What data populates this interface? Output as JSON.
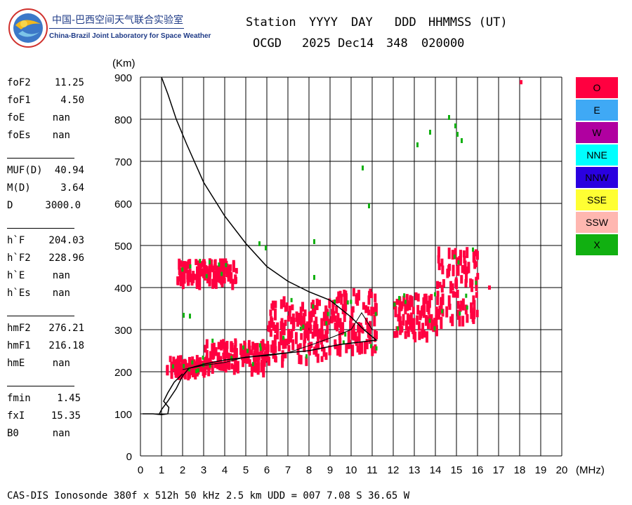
{
  "lab": {
    "name_cn": "中国-巴西空间天气联合实验室",
    "name_en": "China-Brazil Joint Laboratory for Space Weather"
  },
  "header": {
    "labels": [
      "Station",
      "YYYY",
      "DAY",
      "DDD",
      "HHMMSS (UT)"
    ],
    "values": [
      "OCGD",
      "2025 Dec14",
      "348",
      "020000"
    ]
  },
  "params": {
    "group1": [
      [
        "foF2",
        "11.25"
      ],
      [
        "foF1",
        "4.50"
      ],
      [
        "foE",
        "nan"
      ],
      [
        "foEs",
        "nan"
      ]
    ],
    "group2": [
      [
        "MUF(D)",
        "40.94"
      ],
      [
        "M(D)",
        "3.64"
      ],
      [
        "D",
        "3000.0"
      ]
    ],
    "group3": [
      [
        "h`F",
        "204.03"
      ],
      [
        "h`F2",
        "228.96"
      ],
      [
        "h`E",
        "nan"
      ],
      [
        "h`Es",
        "nan"
      ]
    ],
    "group4": [
      [
        "hmF2",
        "276.21"
      ],
      [
        "hmF1",
        "216.18"
      ],
      [
        "hmE",
        "nan"
      ]
    ],
    "group5": [
      [
        "fmin",
        "1.45"
      ],
      [
        "fxI",
        "15.35"
      ],
      [
        "B0",
        "nan"
      ]
    ]
  },
  "legend": [
    {
      "label": "O",
      "color": "#ff0040"
    },
    {
      "label": "E",
      "color": "#3fa9f5"
    },
    {
      "label": "W",
      "color": "#b000a0"
    },
    {
      "label": "NNE",
      "color": "#00ffff"
    },
    {
      "label": "NNW",
      "color": "#2a00e0"
    },
    {
      "label": "SSE",
      "color": "#ffff33"
    },
    {
      "label": "SSW",
      "color": "#ffb7b0"
    },
    {
      "label": "X",
      "color": "#11b011"
    }
  ],
  "footer": "CAS-DIS Ionosonde 380f x 512h 50 kHz 2.5 km UDD = 007 7.08 S 36.65 W",
  "chart_data": {
    "type": "scatter",
    "xlabel": "(MHz)",
    "ylabel": "(Km)",
    "xlim": [
      0,
      20
    ],
    "ylim": [
      0,
      900
    ],
    "xticks": [
      0,
      1,
      2,
      3,
      4,
      5,
      6,
      7,
      8,
      9,
      10,
      11,
      12,
      13,
      14,
      15,
      16,
      17,
      18,
      19,
      20
    ],
    "yticks": [
      0,
      100,
      200,
      300,
      400,
      500,
      600,
      700,
      800,
      900
    ],
    "grid": true,
    "colors": {
      "O": "#ff0040",
      "X": "#11b011"
    },
    "o_trace_clusters": [
      {
        "freq": [
          1.2,
          3.0
        ],
        "height": [
          205,
          240
        ]
      },
      {
        "freq": [
          3.0,
          6.0
        ],
        "height": [
          215,
          280
        ]
      },
      {
        "freq": [
          6.0,
          9.0
        ],
        "height": [
          235,
          380
        ]
      },
      {
        "freq": [
          9.0,
          11.2
        ],
        "height": [
          260,
          400
        ]
      },
      {
        "freq": [
          12.0,
          14.0
        ],
        "height": [
          295,
          390
        ]
      },
      {
        "freq": [
          14.0,
          16.0
        ],
        "height": [
          330,
          500
        ]
      },
      {
        "freq": [
          1.7,
          4.5
        ],
        "height": [
          420,
          470
        ]
      }
    ],
    "x_points": [
      [
        2.0,
        340
      ],
      [
        2.3,
        338
      ],
      [
        8.2,
        515
      ],
      [
        8.2,
        430
      ],
      [
        10.5,
        690
      ],
      [
        10.8,
        600
      ],
      [
        13.1,
        745
      ],
      [
        13.7,
        775
      ],
      [
        14.6,
        810
      ],
      [
        15.0,
        770
      ],
      [
        15.2,
        755
      ],
      [
        14.9,
        790
      ],
      [
        5.6,
        510
      ],
      [
        5.9,
        500
      ]
    ],
    "isolated_o": [
      [
        18.0,
        893
      ],
      [
        16.5,
        405
      ]
    ],
    "profile_curve": [
      [
        1.0,
        900
      ],
      [
        1.3,
        860
      ],
      [
        1.7,
        800
      ],
      [
        2.2,
        740
      ],
      [
        3.0,
        650
      ],
      [
        4.0,
        570
      ],
      [
        5.0,
        505
      ],
      [
        6.0,
        450
      ],
      [
        7.0,
        415
      ],
      [
        8.0,
        390
      ],
      [
        9.0,
        370
      ],
      [
        10.0,
        330
      ],
      [
        10.6,
        300
      ],
      [
        11.2,
        275
      ],
      [
        9.5,
        265
      ],
      [
        8.0,
        250
      ],
      [
        6.0,
        240
      ],
      [
        4.0,
        228
      ],
      [
        3.0,
        218
      ],
      [
        2.3,
        208
      ],
      [
        2.0,
        190
      ],
      [
        1.7,
        160
      ],
      [
        1.3,
        130
      ],
      [
        1.0,
        110
      ],
      [
        0.9,
        100
      ]
    ],
    "virtual_height_trace": [
      [
        2.0,
        205
      ],
      [
        3.0,
        215
      ],
      [
        4.0,
        222
      ],
      [
        5.0,
        235
      ],
      [
        6.0,
        238
      ],
      [
        7.0,
        245
      ],
      [
        8.0,
        262
      ],
      [
        9.0,
        280
      ],
      [
        10.0,
        300
      ],
      [
        10.5,
        340
      ],
      [
        11.0,
        300
      ]
    ],
    "hf_trace": [
      [
        0.1,
        100
      ],
      [
        0.6,
        100
      ],
      [
        1.0,
        98
      ],
      [
        1.3,
        100
      ],
      [
        1.35,
        115
      ],
      [
        1.1,
        130
      ],
      [
        1.3,
        150
      ],
      [
        1.6,
        175
      ],
      [
        2.0,
        195
      ]
    ]
  }
}
